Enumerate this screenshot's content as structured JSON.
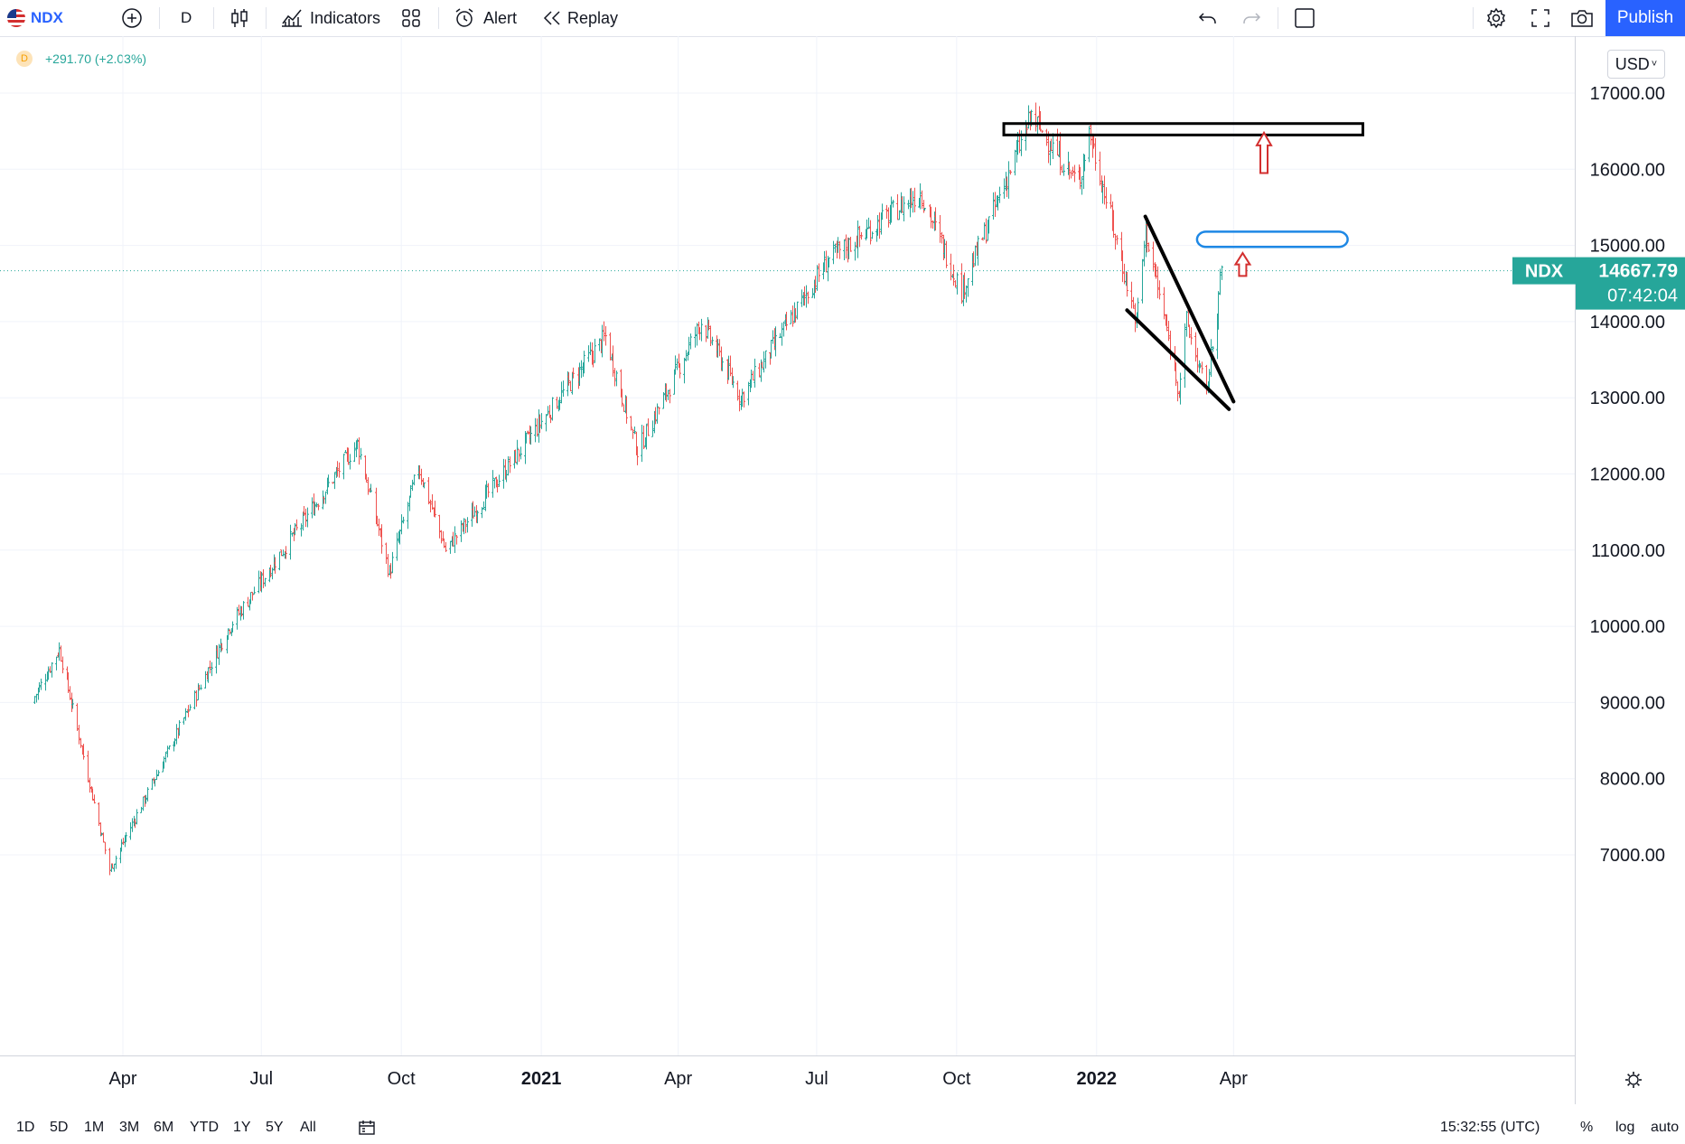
{
  "toolbar": {
    "symbol": "NDX",
    "interval": "D",
    "indicators_label": "Indicators",
    "alert_label": "Alert",
    "replay_label": "Replay",
    "publish_label": "Publish"
  },
  "legend": {
    "source_badge": "D",
    "change_text": "+291.70 (+2.03%)"
  },
  "currency": "USD",
  "price_label": {
    "symbol": "NDX",
    "price": "14667.79",
    "countdown": "07:42:04"
  },
  "bottom": {
    "ranges": [
      "1D",
      "5D",
      "1M",
      "3M",
      "6M",
      "YTD",
      "1Y",
      "5Y",
      "All"
    ],
    "time": "15:32:55 (UTC)",
    "percent": "%",
    "log": "log",
    "auto": "auto"
  },
  "chart_data": {
    "type": "ohlc",
    "symbol": "NDX",
    "interval": "D",
    "y_axis_ticks": [
      "17000.00",
      "16000.00",
      "15000.00",
      "14000.00",
      "13000.00",
      "12000.00",
      "11000.00",
      "10000.00",
      "9000.00",
      "8000.00",
      "7000.00"
    ],
    "x_axis_ticks": [
      {
        "label": "Apr",
        "bold": false
      },
      {
        "label": "Jul",
        "bold": false
      },
      {
        "label": "Oct",
        "bold": false
      },
      {
        "label": "2021",
        "bold": true
      },
      {
        "label": "Apr",
        "bold": false
      },
      {
        "label": "Jul",
        "bold": false
      },
      {
        "label": "Oct",
        "bold": false
      },
      {
        "label": "2022",
        "bold": true
      },
      {
        "label": "Apr",
        "bold": false
      }
    ],
    "ylim": [
      6600,
      17800
    ],
    "last_price": 14667.79,
    "key_points": [
      {
        "date": "2020-02-01",
        "value": 9000
      },
      {
        "date": "2020-02-19",
        "value": 9700
      },
      {
        "date": "2020-03-23",
        "value": 6800
      },
      {
        "date": "2020-06-10",
        "value": 10000
      },
      {
        "date": "2020-09-02",
        "value": 12400
      },
      {
        "date": "2020-09-23",
        "value": 10700
      },
      {
        "date": "2020-10-12",
        "value": 12100
      },
      {
        "date": "2020-10-30",
        "value": 11000
      },
      {
        "date": "2021-01-20",
        "value": 13200
      },
      {
        "date": "2021-02-12",
        "value": 13800
      },
      {
        "date": "2021-03-05",
        "value": 12300
      },
      {
        "date": "2021-04-16",
        "value": 14000
      },
      {
        "date": "2021-05-12",
        "value": 13000
      },
      {
        "date": "2021-07-08",
        "value": 14800
      },
      {
        "date": "2021-09-07",
        "value": 15700
      },
      {
        "date": "2021-10-04",
        "value": 14400
      },
      {
        "date": "2021-11-19",
        "value": 16700
      },
      {
        "date": "2021-12-20",
        "value": 15800
      },
      {
        "date": "2021-12-27",
        "value": 16500
      },
      {
        "date": "2022-01-27",
        "value": 14000
      },
      {
        "date": "2022-02-02",
        "value": 15200
      },
      {
        "date": "2022-02-24",
        "value": 13100
      },
      {
        "date": "2022-03-01",
        "value": 14000
      },
      {
        "date": "2022-03-14",
        "value": 13050
      },
      {
        "date": "2022-03-24",
        "value": 14667.79
      }
    ],
    "annotations": [
      {
        "type": "rectangle",
        "color": "#000000",
        "price_from": 16450,
        "price_to": 16600,
        "date_from": "2021-11-01",
        "date_to": "2022-06-25"
      },
      {
        "type": "rounded-rectangle",
        "color": "#1e88e5",
        "price_from": 14980,
        "price_to": 15180,
        "date_from": "2022-03-08",
        "date_to": "2022-06-15"
      },
      {
        "type": "trendline",
        "color": "#000000",
        "points": [
          {
            "date": "2022-02-02",
            "value": 15380
          },
          {
            "date": "2022-04-01",
            "value": 12950
          }
        ]
      },
      {
        "type": "trendline",
        "color": "#000000",
        "points": [
          {
            "date": "2022-01-21",
            "value": 14150
          },
          {
            "date": "2022-03-29",
            "value": 12850
          }
        ]
      },
      {
        "type": "arrow-up",
        "color": "#d32f2f",
        "date": "2022-04-21",
        "value_from": 15950,
        "value_to": 16480
      },
      {
        "type": "arrow-up",
        "color": "#d32f2f",
        "date": "2022-04-07",
        "value_from": 14600,
        "value_to": 14900
      }
    ],
    "up_color": "#26a69a",
    "down_color": "#ef5350",
    "grid": true
  }
}
